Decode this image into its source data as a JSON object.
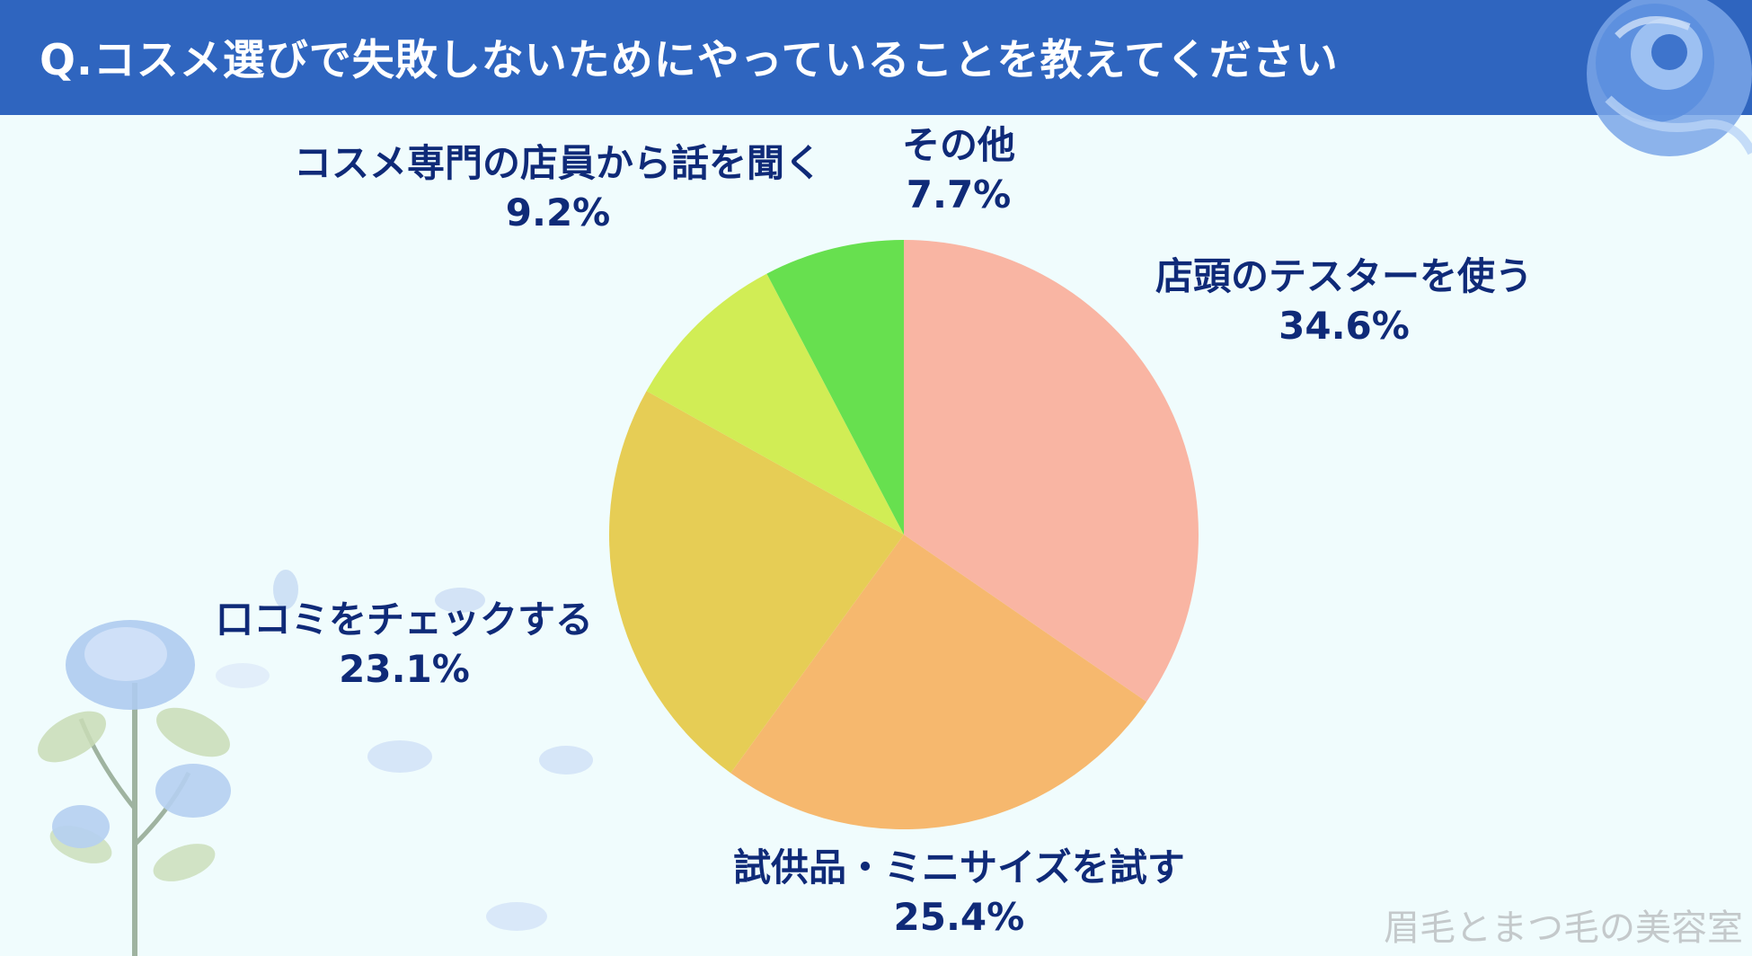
{
  "banner": {
    "title": "Q.コスメ選びで失敗しないためにやっていることを教えてください"
  },
  "chart_data": {
    "type": "pie",
    "title": "Q.コスメ選びで失敗しないためにやっていることを教えてください",
    "slices": [
      {
        "label": "店頭のテスターを使う",
        "value": 34.6,
        "value_label": "34.6%",
        "color": "#f9b5a3"
      },
      {
        "label": "試供品・ミニサイズを試す",
        "value": 25.4,
        "value_label": "25.4%",
        "color": "#f6b86e"
      },
      {
        "label": "口コミをチェックする",
        "value": 23.1,
        "value_label": "23.1%",
        "color": "#e6cd55"
      },
      {
        "label": "コスメ専門の店員から話を聞く",
        "value": 9.2,
        "value_label": "9.2%",
        "color": "#d1ed55"
      },
      {
        "label": "その他",
        "value": 7.7,
        "value_label": "7.7%",
        "color": "#67e04f"
      }
    ],
    "start_angle": "12 o'clock",
    "direction": "clockwise",
    "legend": "none"
  },
  "watermark": "眉毛とまつ毛の美容室"
}
